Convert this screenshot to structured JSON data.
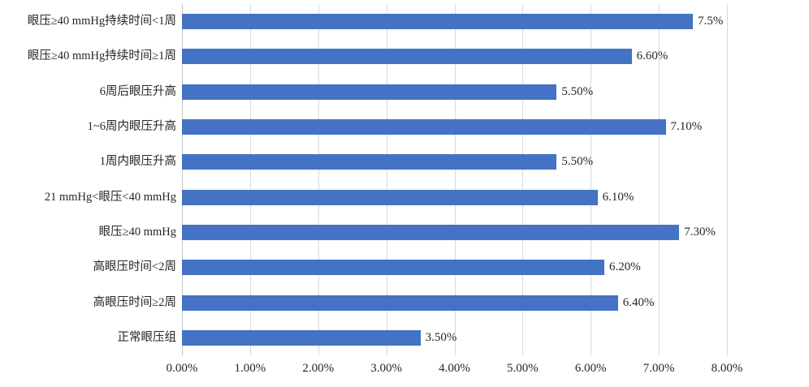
{
  "chart_data": {
    "type": "bar",
    "orientation": "horizontal",
    "title": "",
    "xlabel": "",
    "ylabel": "",
    "xlim": [
      0,
      8
    ],
    "grid": "vertical",
    "legend": "none",
    "bar_color": "#4472c4",
    "gridline_color": "#d9d9d9",
    "text_color": "#262626",
    "categories": [
      "眼压≥40 mmHg持续时间<1周",
      "眼压≥40 mmHg持续时间≥1周",
      "6周后眼压升高",
      "1~6周内眼压升高",
      "1周内眼压升高",
      "21 mmHg<眼压<40 mmHg",
      "眼压≥40 mmHg",
      "高眼压时间<2周",
      "高眼压时间≥2周",
      "正常眼压组"
    ],
    "values": [
      7.5,
      6.6,
      5.5,
      7.1,
      5.5,
      6.1,
      7.3,
      6.2,
      6.4,
      3.5
    ],
    "data_labels": [
      "7.5%",
      "6.60%",
      "5.50%",
      "7.10%",
      "5.50%",
      "6.10%",
      "7.30%",
      "6.20%",
      "6.40%",
      "3.50%"
    ],
    "x_tick_labels": [
      "0.00%",
      "1.00%",
      "2.00%",
      "3.00%",
      "4.00%",
      "5.00%",
      "6.00%",
      "7.00%",
      "8.00%"
    ]
  }
}
